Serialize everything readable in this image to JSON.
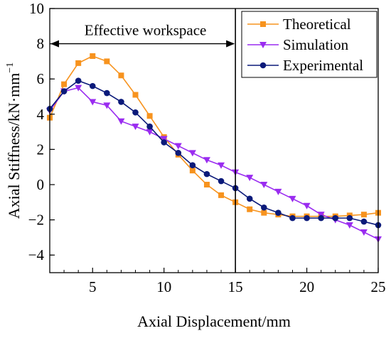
{
  "chart_data": {
    "type": "line",
    "title": "",
    "xlabel": "Axial Displacement/mm",
    "ylabel": "Axial Stiffness/kN·mm",
    "ylabel_superscript": "−1",
    "xlim": [
      2,
      25
    ],
    "ylim": [
      -5,
      10
    ],
    "x_ticks": [
      5,
      10,
      15,
      20,
      25
    ],
    "x_tick_labels": [
      "5",
      "10",
      "15",
      "20",
      "25"
    ],
    "y_ticks": [
      -4,
      -2,
      0,
      2,
      4,
      6,
      8,
      10
    ],
    "y_tick_labels": [
      "−4",
      "−2",
      "0",
      "2",
      "4",
      "6",
      "8",
      "10"
    ],
    "grid": false,
    "legend_position": "top-right",
    "vertical_line_x": 15,
    "annotation": {
      "text": "Effective workspace",
      "arrow_from_x": 2,
      "arrow_to_x": 15,
      "arrow_y": 8.0
    },
    "series": [
      {
        "name": "Theoretical",
        "color": "#f7931e",
        "marker": "square",
        "x": [
          2,
          3,
          4,
          5,
          6,
          7,
          8,
          9,
          10,
          11,
          12,
          13,
          14,
          15,
          16,
          17,
          18,
          19,
          20,
          21,
          22,
          23,
          24,
          25
        ],
        "y": [
          3.8,
          5.7,
          6.9,
          7.3,
          7.0,
          6.2,
          5.1,
          3.9,
          2.7,
          1.7,
          0.8,
          0.0,
          -0.6,
          -1.0,
          -1.4,
          -1.6,
          -1.7,
          -1.8,
          -1.8,
          -1.8,
          -1.8,
          -1.75,
          -1.7,
          -1.6
        ]
      },
      {
        "name": "Simulation",
        "color": "#9a2cf0",
        "marker": "triangle-down",
        "x": [
          2,
          3,
          4,
          5,
          6,
          7,
          8,
          9,
          10,
          11,
          12,
          13,
          14,
          15,
          16,
          17,
          18,
          19,
          20,
          21,
          22,
          23,
          24,
          25
        ],
        "y": [
          4.2,
          5.3,
          5.5,
          4.7,
          4.5,
          3.6,
          3.3,
          3.0,
          2.6,
          2.2,
          1.8,
          1.4,
          1.1,
          0.7,
          0.4,
          0.0,
          -0.4,
          -0.8,
          -1.2,
          -1.7,
          -2.0,
          -2.3,
          -2.7,
          -3.1
        ]
      },
      {
        "name": "Experimental",
        "color": "#0b1a7a",
        "marker": "circle",
        "x": [
          2,
          3,
          4,
          5,
          6,
          7,
          8,
          9,
          10,
          11,
          12,
          13,
          14,
          15,
          16,
          17,
          18,
          19,
          20,
          21,
          22,
          23,
          24,
          25
        ],
        "y": [
          4.3,
          5.3,
          5.9,
          5.6,
          5.2,
          4.7,
          4.1,
          3.3,
          2.4,
          1.8,
          1.1,
          0.6,
          0.2,
          -0.2,
          -0.8,
          -1.3,
          -1.6,
          -1.9,
          -1.9,
          -1.9,
          -1.9,
          -1.9,
          -2.1,
          -2.3
        ]
      }
    ]
  }
}
